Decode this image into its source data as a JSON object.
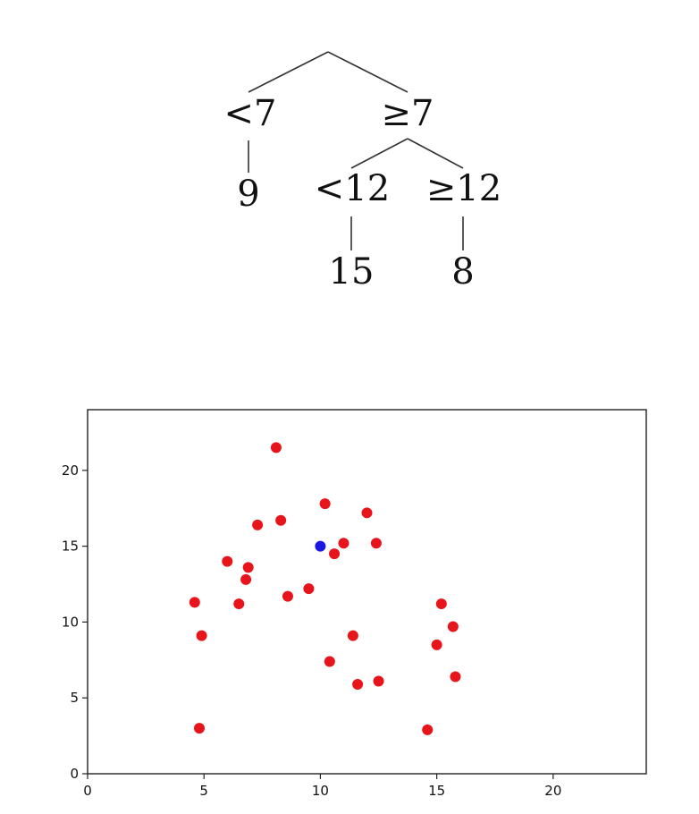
{
  "tree": {
    "root_left_label": "<7",
    "root_right_label": "≥7",
    "left_leaf": "9",
    "sub_left_label": "<12",
    "sub_right_label": "≥12",
    "sub_left_leaf": "15",
    "sub_right_leaf": "8"
  },
  "chart_data": {
    "type": "scatter",
    "xlim": [
      0,
      24
    ],
    "ylim": [
      0,
      24
    ],
    "xticks": [
      "0",
      "5",
      "10",
      "15",
      "20"
    ],
    "yticks": [
      "0",
      "5",
      "10",
      "15",
      "20"
    ],
    "grid": false,
    "series": [
      {
        "color": "#e8141c",
        "points": [
          [
            4.6,
            11.3
          ],
          [
            4.9,
            9.1
          ],
          [
            4.8,
            3.0
          ],
          [
            6.0,
            14.0
          ],
          [
            6.5,
            11.2
          ],
          [
            6.8,
            12.8
          ],
          [
            6.9,
            13.6
          ],
          [
            7.3,
            16.4
          ],
          [
            8.1,
            21.5
          ],
          [
            8.3,
            16.7
          ],
          [
            8.6,
            11.7
          ],
          [
            9.5,
            12.2
          ],
          [
            10.2,
            17.8
          ],
          [
            10.4,
            7.4
          ],
          [
            10.6,
            14.5
          ],
          [
            11.0,
            15.2
          ],
          [
            11.4,
            9.1
          ],
          [
            11.6,
            5.9
          ],
          [
            12.0,
            17.2
          ],
          [
            12.4,
            15.2
          ],
          [
            12.5,
            6.1
          ],
          [
            14.6,
            2.9
          ],
          [
            15.0,
            8.5
          ],
          [
            15.2,
            11.2
          ],
          [
            15.7,
            9.7
          ],
          [
            15.8,
            6.4
          ]
        ]
      },
      {
        "color": "#1a18e0",
        "points": [
          [
            10.0,
            15.0
          ]
        ]
      }
    ]
  }
}
